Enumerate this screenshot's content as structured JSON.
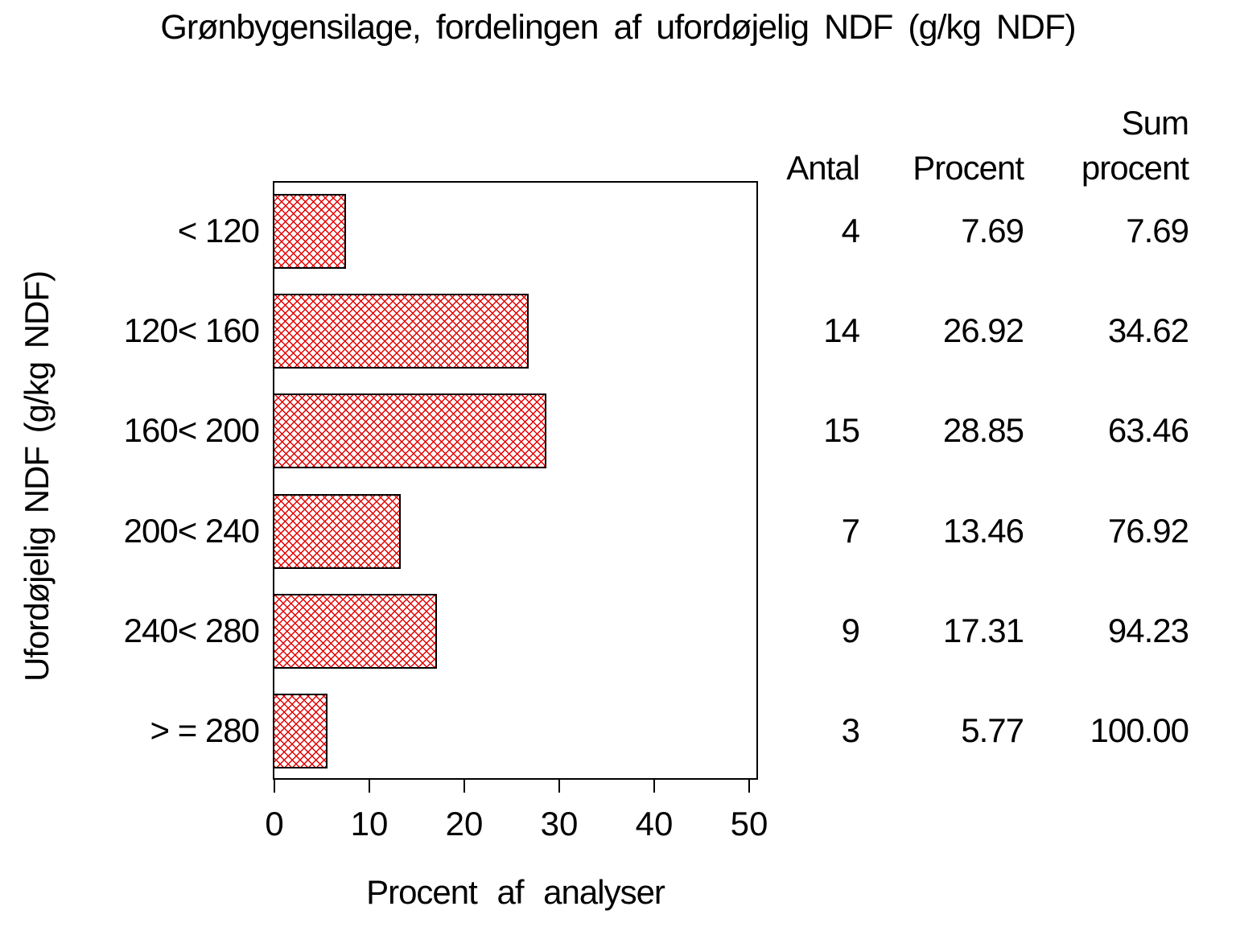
{
  "title": "Grønbygensilage, fordelingen af ufordøjelig NDF (g/kg NDF)",
  "x_axis": {
    "title": "Procent af analyser",
    "ticks": [
      "0",
      "10",
      "20",
      "30",
      "40",
      "50"
    ],
    "max": 50
  },
  "y_axis": {
    "title": "Ufordøjelig NDF (g/kg NDF)"
  },
  "table": {
    "headers": {
      "antal": "Antal",
      "procent": "Procent",
      "sum_line1": "Sum",
      "sum_line2": "procent"
    },
    "rows": [
      {
        "antal": "4",
        "procent": "7.69",
        "sum": "7.69"
      },
      {
        "antal": "14",
        "procent": "26.92",
        "sum": "34.62"
      },
      {
        "antal": "15",
        "procent": "28.85",
        "sum": "63.46"
      },
      {
        "antal": "7",
        "procent": "13.46",
        "sum": "76.92"
      },
      {
        "antal": "9",
        "procent": "17.31",
        "sum": "94.23"
      },
      {
        "antal": "3",
        "procent": "5.77",
        "sum": "100.00"
      }
    ]
  },
  "chart_data": {
    "type": "bar",
    "orientation": "horizontal",
    "title": "Grønbygensilage, fordelingen af ufordøjelig NDF (g/kg NDF)",
    "xlabel": "Procent af analyser",
    "ylabel": "Ufordøjelig NDF (g/kg NDF)",
    "categories": [
      "< 120",
      "120< 160",
      "160< 200",
      "200< 240",
      "240< 280",
      "> = 280"
    ],
    "values": [
      7.69,
      26.92,
      28.85,
      13.46,
      17.31,
      5.77
    ],
    "counts": [
      4,
      14,
      15,
      7,
      9,
      3
    ],
    "cum_percent": [
      7.69,
      34.62,
      63.46,
      76.92,
      94.23,
      100.0
    ],
    "xlim": [
      0,
      50
    ],
    "x_ticks": [
      0,
      10,
      20,
      30,
      40,
      50
    ],
    "grid": false,
    "legend": false,
    "bar_fill_pattern": "crosshatch",
    "bar_pattern_color": "#e30000",
    "bar_outline_color": "#000000",
    "frame_color": "#000000",
    "text_color": "#000000",
    "background_color": "#ffffff"
  }
}
